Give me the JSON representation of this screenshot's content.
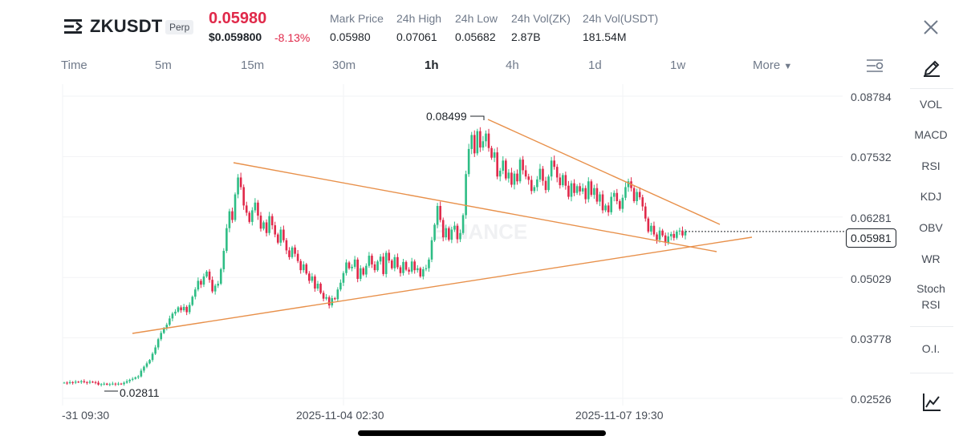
{
  "header": {
    "symbol": "ZKUSDT",
    "contract_type": "Perp",
    "last_price": "0.05980",
    "usd_price": "$0.059800",
    "change_pct": "-8.13%",
    "stats": [
      {
        "label": "Mark Price",
        "value": "0.05980"
      },
      {
        "label": "24h High",
        "value": "0.07061"
      },
      {
        "label": "24h Low",
        "value": "0.05682"
      },
      {
        "label": "24h Vol(ZK)",
        "value": "2.87B"
      },
      {
        "label": "24h Vol(USDT)",
        "value": "181.54M"
      }
    ]
  },
  "timeframes": [
    "Time",
    "5m",
    "15m",
    "30m",
    "1h",
    "4h",
    "1d",
    "1w",
    "More"
  ],
  "active_timeframe": "1h",
  "indicators": [
    "VOL",
    "MACD",
    "RSI",
    "KDJ",
    "OBV",
    "WR",
    "Stoch",
    "RSI",
    "O.I."
  ],
  "watermark": "BINANCE",
  "icons": {
    "menu": "menu-icon",
    "close": "close-icon",
    "draw": "pencil-draw-icon",
    "settings": "chart-settings-icon",
    "chart": "line-chart-icon",
    "more": "chevron-down-icon"
  },
  "colors": {
    "up": "#2ebd85",
    "down": "#e0294a",
    "trendline": "#e8904a",
    "accent": "#e0294a"
  },
  "chart_data": {
    "type": "candlestick",
    "y_ticks": [
      "0.08784",
      "0.07532",
      "0.06281",
      "0.05029",
      "0.03778",
      "0.02526"
    ],
    "ylim": [
      0.02526,
      0.08784
    ],
    "x_ticks": [
      "-31 09:30",
      "2025-11-04 02:30",
      "2025-11-07 19:30"
    ],
    "current_price_label": "0.05981",
    "current_price": 0.05981,
    "high_label": "0.08499",
    "low_label": "0.02811",
    "closes": [
      0.0285,
      0.0284,
      0.0286,
      0.0285,
      0.0287,
      0.0286,
      0.0288,
      0.0286,
      0.0285,
      0.0287,
      0.0286,
      0.0285,
      0.0281,
      0.0282,
      0.0283,
      0.0281,
      0.0282,
      0.0283,
      0.0282,
      0.0283,
      0.0282,
      0.0285,
      0.0288,
      0.0291,
      0.0293,
      0.0296,
      0.0298,
      0.031,
      0.0318,
      0.0325,
      0.0332,
      0.0345,
      0.0358,
      0.0375,
      0.0388,
      0.0398,
      0.0405,
      0.0418,
      0.0428,
      0.0432,
      0.0441,
      0.0435,
      0.0442,
      0.0431,
      0.0446,
      0.0463,
      0.0478,
      0.0496,
      0.0488,
      0.0505,
      0.0515,
      0.0498,
      0.0474,
      0.0486,
      0.049,
      0.052,
      0.0558,
      0.0605,
      0.064,
      0.0622,
      0.0675,
      0.071,
      0.069,
      0.0652,
      0.0637,
      0.0618,
      0.0642,
      0.0658,
      0.0631,
      0.0604,
      0.0617,
      0.0595,
      0.063,
      0.0611,
      0.0592,
      0.0575,
      0.0602,
      0.058,
      0.0559,
      0.0545,
      0.0565,
      0.0552,
      0.0537,
      0.0518,
      0.053,
      0.0511,
      0.0496,
      0.0505,
      0.048,
      0.049,
      0.0471,
      0.0459,
      0.0462,
      0.0445,
      0.046,
      0.0458,
      0.0478,
      0.0492,
      0.0512,
      0.0534,
      0.0522,
      0.0525,
      0.054,
      0.05,
      0.0522,
      0.0509,
      0.0527,
      0.0548,
      0.053,
      0.0518,
      0.0536,
      0.0546,
      0.051,
      0.0554,
      0.0538,
      0.0522,
      0.0545,
      0.0524,
      0.0512,
      0.0535,
      0.0519,
      0.0515,
      0.0536,
      0.0518,
      0.0522,
      0.0505,
      0.052,
      0.0522,
      0.054,
      0.058,
      0.0612,
      0.0651,
      0.0622,
      0.0586,
      0.0605,
      0.0581,
      0.0602,
      0.061,
      0.0582,
      0.0595,
      0.0632,
      0.0717,
      0.0769,
      0.0798,
      0.076,
      0.0806,
      0.0772,
      0.0785,
      0.0801,
      0.0771,
      0.0751,
      0.0762,
      0.0712,
      0.0724,
      0.0745,
      0.0708,
      0.072,
      0.0695,
      0.0718,
      0.0702,
      0.0747,
      0.0725,
      0.0712,
      0.0705,
      0.0682,
      0.069,
      0.0706,
      0.0728,
      0.0703,
      0.0684,
      0.0712,
      0.0745,
      0.0732,
      0.071,
      0.0694,
      0.0715,
      0.0693,
      0.067,
      0.0698,
      0.0678,
      0.0692,
      0.0681,
      0.0688,
      0.0665,
      0.0702,
      0.0674,
      0.0688,
      0.066,
      0.0675,
      0.0642,
      0.0652,
      0.0638,
      0.067,
      0.0678,
      0.0661,
      0.0645,
      0.0668,
      0.069,
      0.0702,
      0.0688,
      0.0661,
      0.068,
      0.0669,
      0.065,
      0.0625,
      0.0598,
      0.061,
      0.0592,
      0.0581,
      0.06,
      0.059,
      0.0575,
      0.0588,
      0.0593,
      0.0585,
      0.0598,
      0.06,
      0.059,
      0.0598
    ]
  }
}
